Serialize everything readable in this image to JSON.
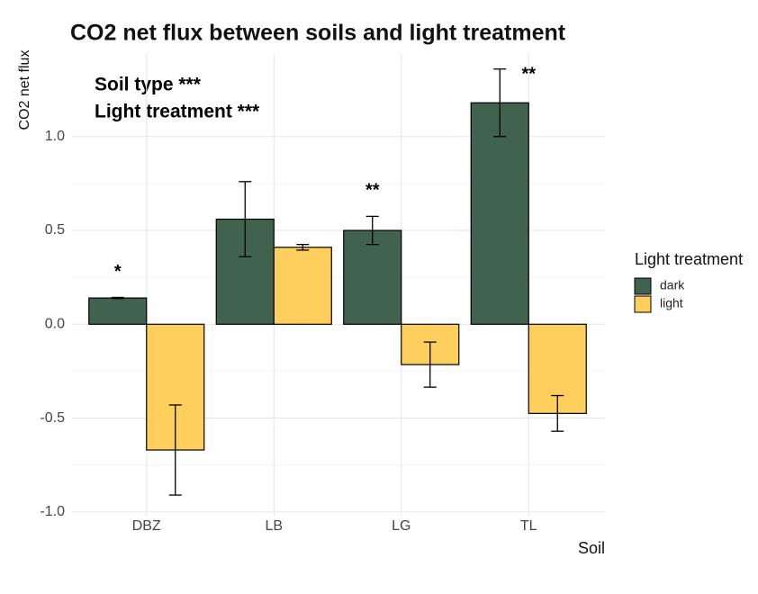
{
  "chart_data": {
    "type": "bar",
    "title": "CO2 net flux between soils and light treatment",
    "x_label": "Soil",
    "y_label": "CO2 net flux",
    "annotations": [
      "Soil type ***",
      "Light treatment ***"
    ],
    "categories": [
      "DBZ",
      "LB",
      "LG",
      "TL"
    ],
    "significance": [
      "*",
      null,
      "**",
      "**"
    ],
    "series": [
      {
        "name": "dark",
        "color": "#41624f",
        "values": [
          0.14,
          0.56,
          0.5,
          1.18
        ],
        "errors": [
          0.003,
          0.2,
          0.075,
          0.18
        ]
      },
      {
        "name": "light",
        "color": "#fecf5c",
        "values": [
          -0.67,
          0.41,
          -0.215,
          -0.475
        ],
        "errors": [
          0.24,
          0.015,
          0.12,
          0.095
        ]
      }
    ],
    "legend_title": "Light treatment",
    "legend": "right",
    "ylim": [
      -1.02,
      1.44
    ],
    "yticks": [
      {
        "value": -1,
        "label": "-1.0"
      },
      -0.5,
      {
        "value": 0,
        "label": "0.0"
      },
      0.5,
      {
        "value": 1,
        "label": "1.0"
      }
    ],
    "grid": true
  }
}
